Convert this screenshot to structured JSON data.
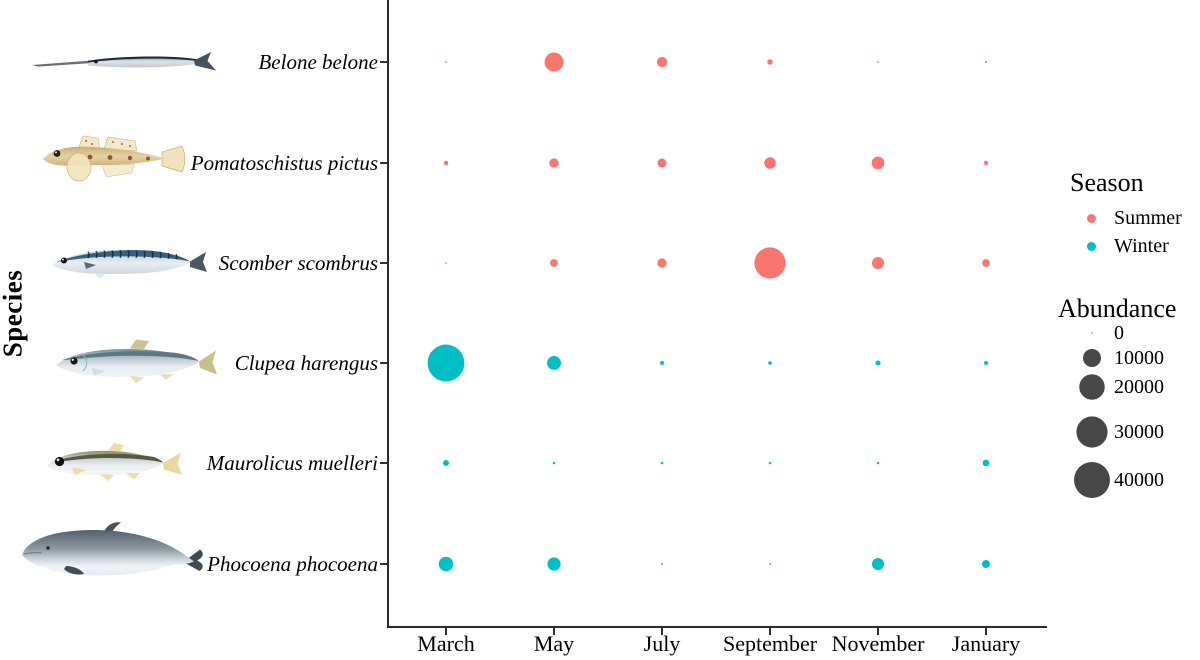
{
  "figure": {
    "ylabel": "Species",
    "background": "#ffffff"
  },
  "chart_data": {
    "type": "scatter",
    "title": "",
    "xlabel": "",
    "ylabel": "Species",
    "grid": false,
    "months": [
      "March",
      "May",
      "July",
      "September",
      "November",
      "January"
    ],
    "species": [
      {
        "label": "Belone belone",
        "season": "Summer",
        "values": [
          100,
          11000,
          3200,
          900,
          100,
          150
        ]
      },
      {
        "label": "Pomatoschistus pictus",
        "season": "Summer",
        "values": [
          600,
          2700,
          2500,
          4100,
          5000,
          600
        ]
      },
      {
        "label": "Scomber scombrus",
        "season": "Summer",
        "values": [
          100,
          1900,
          2600,
          30000,
          4500,
          1800
        ]
      },
      {
        "label": "Clupea harengus",
        "season": "Winter",
        "values": [
          42000,
          6000,
          500,
          400,
          800,
          500
        ]
      },
      {
        "label": "Maurolicus muelleri",
        "season": "Winter",
        "values": [
          1100,
          200,
          200,
          200,
          200,
          1400
        ]
      },
      {
        "label": "Phocoena phocoena",
        "season": "Winter",
        "values": [
          6400,
          5400,
          100,
          100,
          4500,
          2000
        ]
      }
    ],
    "seasons": [
      {
        "label": "Summer",
        "color": "#F8766D"
      },
      {
        "label": "Winter",
        "color": "#00BFC4"
      }
    ],
    "legend": {
      "season_title": "Season",
      "abundance_title": "Abundance",
      "abundance_breaks": [
        0,
        10000,
        20000,
        30000,
        40000
      ],
      "abundance_labels": [
        "0",
        "10000",
        "20000",
        "30000",
        "40000"
      ],
      "bubble_color": "#474747",
      "position": "right"
    },
    "size_encoding": "circle area proportional to abundance",
    "axis_range_note": "categorical x (months) and y (species)"
  }
}
